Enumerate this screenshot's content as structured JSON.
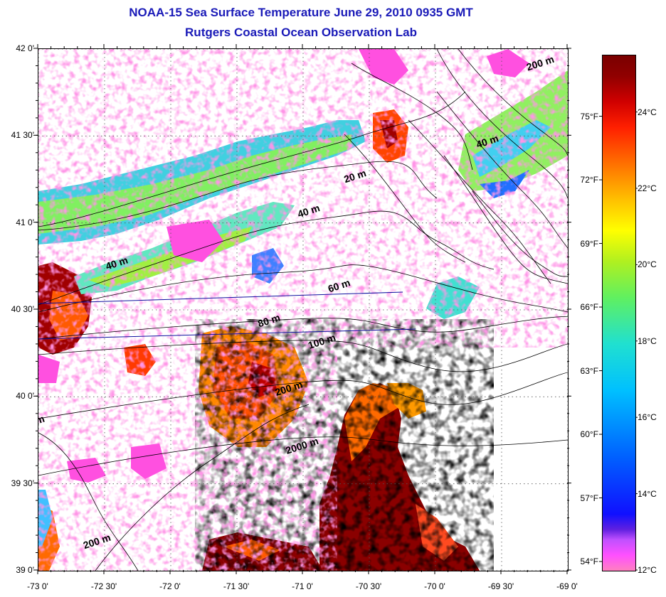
{
  "title_line1": "NOAA-15 Sea Surface Temperature June 29, 2010 0935 GMT",
  "title_line2": "Rutgers Coastal Ocean Observation Lab",
  "map": {
    "lat_range": [
      39.0,
      42.0
    ],
    "lon_range": [
      -73.0,
      -69.0
    ],
    "lat_labels": [
      "42 0'",
      "41 30'",
      "41 0'",
      "40 30'",
      "40 0'",
      "39 30'",
      "39 0'"
    ],
    "lat_values": [
      42.0,
      41.5,
      41.0,
      40.5,
      40.0,
      39.5,
      39.0
    ],
    "lon_labels": [
      "-73 0'",
      "-72 30'",
      "-72 0'",
      "-71 30'",
      "-71 0'",
      "-70 30'",
      "-70 0'",
      "-69 30'",
      "-69 0'"
    ],
    "lon_values": [
      -73.0,
      -72.5,
      -72.0,
      -71.5,
      -71.0,
      -70.5,
      -70.0,
      -69.5,
      -69.0
    ],
    "gridlines": true,
    "contour_labels": [
      {
        "text": "200 m",
        "lon": -69.2,
        "lat": 41.9
      },
      {
        "text": "40 m",
        "lon": -69.6,
        "lat": 41.45
      },
      {
        "text": "20 m",
        "lon": -70.6,
        "lat": 41.25
      },
      {
        "text": "40 m",
        "lon": -70.95,
        "lat": 41.05
      },
      {
        "text": "40 m",
        "lon": -72.4,
        "lat": 40.75
      },
      {
        "text": "60 m",
        "lon": -70.72,
        "lat": 40.62
      },
      {
        "text": "80 m",
        "lon": -71.25,
        "lat": 40.42
      },
      {
        "text": "100 m",
        "lon": -70.85,
        "lat": 40.3
      },
      {
        "text": "200 m",
        "lon": -71.1,
        "lat": 40.03
      },
      {
        "text": "2000 m",
        "lon": -71.0,
        "lat": 39.7
      },
      {
        "text": "m",
        "lon": -72.98,
        "lat": 39.85
      },
      {
        "text": "200 m",
        "lon": -72.55,
        "lat": 39.15
      }
    ]
  },
  "colorbar": {
    "range_c": [
      12,
      25.5
    ],
    "celsius_labels": [
      "24°C",
      "22°C",
      "20°C",
      "18°C",
      "16°C",
      "14°C",
      "12°C"
    ],
    "celsius_values": [
      24,
      22,
      20,
      18,
      16,
      14,
      12
    ],
    "fahrenheit_labels": [
      "75°F",
      "72°F",
      "69°F",
      "66°F",
      "63°F",
      "60°F",
      "57°F",
      "54°F"
    ],
    "fahrenheit_values": [
      75,
      72,
      69,
      66,
      63,
      60,
      57,
      54
    ]
  }
}
